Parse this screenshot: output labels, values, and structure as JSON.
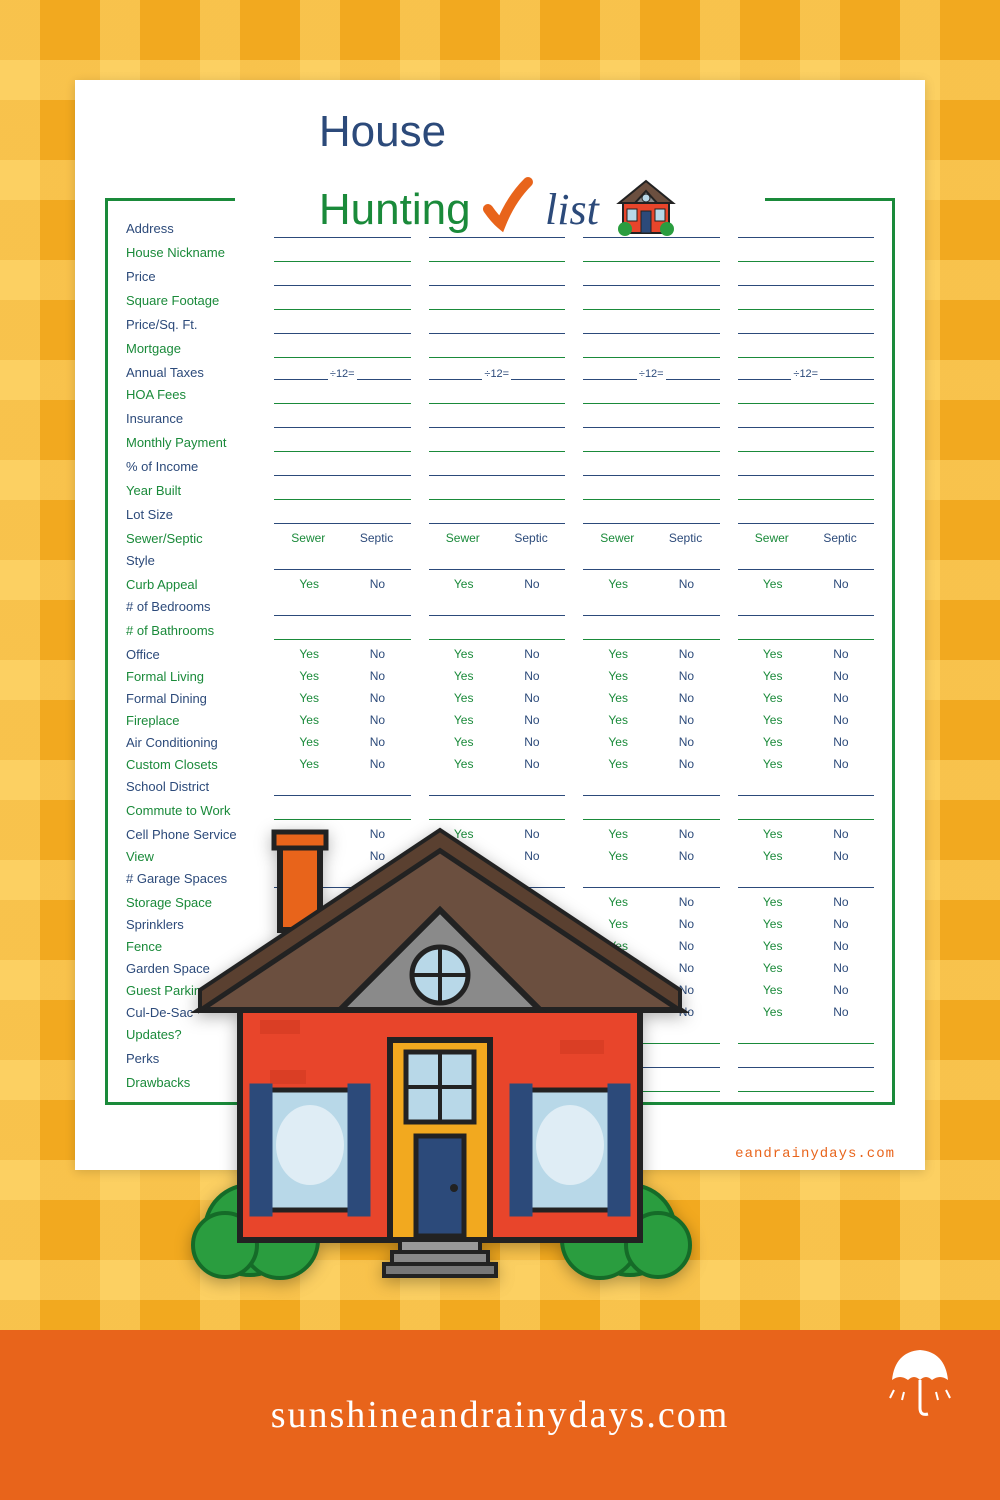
{
  "title": {
    "line1": "House",
    "line2": "Hunting",
    "list": "list"
  },
  "colors": {
    "accent_green": "#1a8a3a",
    "accent_blue": "#2c4a7a",
    "brand_orange": "#e8641b",
    "bg_yellow": "#f2a91f",
    "house_red": "#e8452b",
    "roof_brown": "#6b4f3f"
  },
  "columns": 4,
  "rows": [
    {
      "label": "Address",
      "type": "fill",
      "color": "blue"
    },
    {
      "label": "House Nickname",
      "type": "fill",
      "color": "green"
    },
    {
      "label": "Price",
      "type": "fill",
      "color": "blue"
    },
    {
      "label": "Square Footage",
      "type": "fill",
      "color": "green"
    },
    {
      "label": "Price/Sq. Ft.",
      "type": "fill",
      "color": "blue"
    },
    {
      "label": "Mortgage",
      "type": "fill",
      "color": "green"
    },
    {
      "label": "Annual Taxes",
      "type": "tax",
      "color": "blue",
      "formula": "÷12="
    },
    {
      "label": "HOA Fees",
      "type": "fill",
      "color": "green"
    },
    {
      "label": "Insurance",
      "type": "fill",
      "color": "blue"
    },
    {
      "label": "Monthly Payment",
      "type": "fill",
      "color": "green"
    },
    {
      "label": "% of Income",
      "type": "fill",
      "color": "blue"
    },
    {
      "label": "Year Built",
      "type": "fill",
      "color": "green"
    },
    {
      "label": "Lot Size",
      "type": "fill",
      "color": "blue"
    },
    {
      "label": "Sewer/Septic",
      "type": "sewer",
      "color": "green",
      "opt1": "Sewer",
      "opt2": "Septic"
    },
    {
      "label": "Style",
      "type": "fill",
      "color": "blue"
    },
    {
      "label": "Curb Appeal",
      "type": "yn",
      "color": "green",
      "opt1": "Yes",
      "opt2": "No"
    },
    {
      "label": "# of Bedrooms",
      "type": "fill",
      "color": "blue"
    },
    {
      "label": "# of Bathrooms",
      "type": "fill",
      "color": "green"
    },
    {
      "label": "Office",
      "type": "yn",
      "color": "blue",
      "opt1": "Yes",
      "opt2": "No"
    },
    {
      "label": "Formal Living",
      "type": "yn",
      "color": "green",
      "opt1": "Yes",
      "opt2": "No"
    },
    {
      "label": "Formal Dining",
      "type": "yn",
      "color": "blue",
      "opt1": "Yes",
      "opt2": "No"
    },
    {
      "label": "Fireplace",
      "type": "yn",
      "color": "green",
      "opt1": "Yes",
      "opt2": "No"
    },
    {
      "label": "Air Conditioning",
      "type": "yn",
      "color": "blue",
      "opt1": "Yes",
      "opt2": "No"
    },
    {
      "label": "Custom Closets",
      "type": "yn",
      "color": "green",
      "opt1": "Yes",
      "opt2": "No"
    },
    {
      "label": "School District",
      "type": "fill",
      "color": "blue"
    },
    {
      "label": "Commute to Work",
      "type": "fill",
      "color": "green"
    },
    {
      "label": "Cell Phone Service",
      "type": "yn",
      "color": "blue",
      "opt1": "Yes",
      "opt2": "No"
    },
    {
      "label": "View",
      "type": "yn",
      "color": "green",
      "opt1": "Yes",
      "opt2": "No"
    },
    {
      "label": "# Garage Spaces",
      "type": "fill",
      "color": "blue"
    },
    {
      "label": "Storage Space",
      "type": "yn",
      "color": "green",
      "opt1": "Yes",
      "opt2": "No"
    },
    {
      "label": "Sprinklers",
      "type": "yn",
      "color": "blue",
      "opt1": "Yes",
      "opt2": "No"
    },
    {
      "label": "Fence",
      "type": "yn",
      "color": "green",
      "opt1": "Yes",
      "opt2": "No"
    },
    {
      "label": "Garden Space",
      "type": "yn",
      "color": "blue",
      "opt1": "Yes",
      "opt2": "No"
    },
    {
      "label": "Guest Parking",
      "type": "yn",
      "color": "green",
      "opt1": "Yes",
      "opt2": "No"
    },
    {
      "label": "Cul-De-Sac",
      "type": "yn",
      "color": "blue",
      "opt1": "Yes",
      "opt2": "No"
    },
    {
      "label": "Updates?",
      "type": "fill",
      "color": "green"
    },
    {
      "label": "Perks",
      "type": "fill",
      "color": "blue"
    },
    {
      "label": "Drawbacks",
      "type": "fill",
      "color": "green"
    }
  ],
  "watermark": "eandrainydays.com",
  "footer": "sunshineandrainydays.com"
}
